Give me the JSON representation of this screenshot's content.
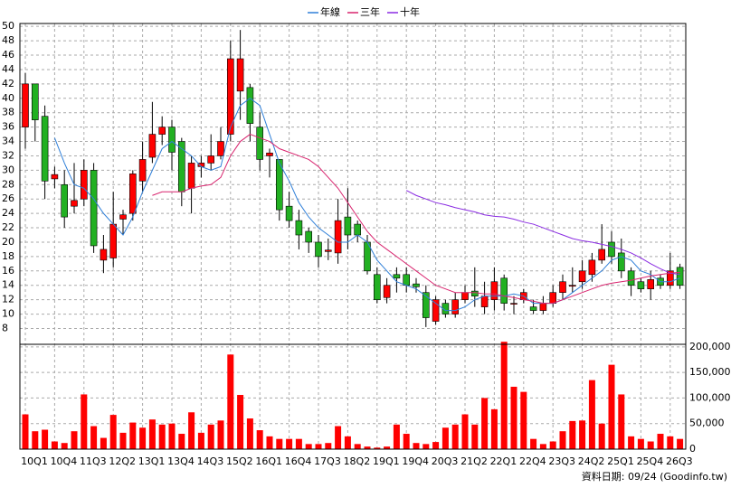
{
  "chart_data": {
    "type": "candlestick",
    "categories": [
      "10Q1",
      null,
      null,
      "10Q4",
      null,
      null,
      "11Q3",
      null,
      null,
      "12Q2",
      null,
      null,
      "13Q1",
      null,
      null,
      "13Q4",
      null,
      null,
      "14Q3",
      null,
      null,
      "15Q2",
      null,
      null,
      "16Q1",
      null,
      null,
      "16Q4",
      null,
      null,
      "17Q3",
      null,
      null,
      "18Q2",
      null,
      null,
      "19Q1",
      null,
      null,
      "19Q4",
      null,
      null,
      "20Q3",
      null,
      null,
      "21Q2",
      null,
      null,
      "22Q1",
      null,
      null,
      "22Q4",
      null,
      null,
      "23Q3",
      null,
      null,
      "24Q2",
      null,
      null,
      "25Q1",
      null,
      null,
      "25Q4",
      null,
      null,
      "26Q3",
      null
    ],
    "open": [
      36,
      42,
      37.5,
      28.8,
      28,
      25,
      26,
      30,
      17.5,
      17.8,
      23.2,
      24,
      28.5,
      31.8,
      35,
      36,
      34,
      27.5,
      30.5,
      31,
      32,
      35,
      41,
      41.5,
      36,
      32,
      31.5,
      25,
      23,
      21.5,
      20,
      18.7,
      18.5,
      23.5,
      22.5,
      20,
      15.5,
      12.3,
      15.5,
      15.5,
      14.2,
      13,
      9,
      11.5,
      10,
      12,
      13.2,
      11,
      12,
      15,
      11.4,
      12,
      11,
      10.5,
      11.5,
      13,
      13.9,
      14.5,
      15.5,
      17.5,
      20,
      18.5,
      16,
      14.5,
      13.5,
      15,
      14,
      16.5
    ],
    "high": [
      43.5,
      42,
      39,
      30.5,
      30,
      31,
      31.5,
      31,
      21,
      27,
      24.5,
      30,
      34,
      39.5,
      37.5,
      37,
      34.5,
      32,
      32,
      35,
      36,
      48,
      49.5,
      42,
      38,
      33,
      31.5,
      27,
      24.5,
      22,
      21,
      20.5,
      26,
      27.5,
      23,
      21,
      16.5,
      15,
      16.5,
      16.5,
      15,
      14,
      12.5,
      12,
      13,
      14,
      16.5,
      14.5,
      16.5,
      15.5,
      12.5,
      13.5,
      12,
      12.5,
      14,
      15.5,
      16.5,
      17.5,
      18.5,
      22.5,
      21.5,
      20.5,
      16.5,
      15,
      16,
      15.5,
      18.5,
      17
    ],
    "low": [
      33,
      34,
      26,
      27.5,
      22,
      24,
      25,
      18.5,
      15.7,
      16.5,
      21,
      23,
      27,
      31,
      33.5,
      30,
      25,
      24,
      29,
      30,
      31.5,
      34,
      37,
      34,
      30,
      29,
      23,
      22,
      19,
      18.5,
      16.5,
      17.5,
      17,
      19,
      20,
      15.5,
      11.5,
      11.5,
      13,
      13,
      13,
      8.2,
      8.5,
      9.5,
      9.5,
      11.5,
      11,
      10,
      10.5,
      10.5,
      10,
      11.5,
      10,
      10,
      11,
      12,
      13,
      13.5,
      14.5,
      17,
      17,
      15,
      12.5,
      13,
      12,
      13.5,
      13.5,
      13.5
    ],
    "close": [
      42,
      37,
      28.5,
      29.4,
      23.5,
      25.8,
      30,
      19.5,
      19,
      22.5,
      23.8,
      29.5,
      31.5,
      35,
      36,
      32.5,
      27,
      31,
      31,
      32,
      34,
      45.5,
      45.5,
      36.5,
      31.5,
      32.4,
      24.5,
      23,
      21,
      20,
      18,
      18.9,
      23,
      21,
      21,
      16,
      12,
      14,
      15,
      14,
      13.8,
      9.5,
      12,
      10,
      12,
      13,
      12.5,
      12.5,
      14.5,
      11.5,
      11.5,
      13,
      10.5,
      11.5,
      13,
      14.5,
      14,
      16,
      17.5,
      19,
      18,
      16,
      14,
      13.5,
      14.8,
      14,
      16,
      14
    ],
    "up_color": "#ff0000",
    "down_color": "#22b022",
    "flat_color": "#000000",
    "ylim": [
      5.8,
      50.4
    ],
    "yticks": [
      8,
      10,
      12,
      14,
      16,
      18,
      20,
      22,
      24,
      26,
      28,
      30,
      32,
      34,
      36,
      38,
      40,
      42,
      44,
      46,
      48,
      50
    ],
    "grid": true,
    "lines": [
      {
        "name": "年線",
        "color": "#2f7fd8",
        "values": [
          null,
          null,
          null,
          34.5,
          31,
          28,
          27.5,
          26,
          24,
          22.5,
          21,
          23.5,
          27,
          30,
          33,
          34,
          33,
          32,
          30.5,
          30,
          30.5,
          36,
          39,
          40,
          39,
          35,
          31,
          28.5,
          25.5,
          23.5,
          22,
          21,
          20,
          20,
          21,
          20,
          17.5,
          16,
          14.5,
          14,
          13.5,
          12.5,
          11.5,
          10.5,
          10.5,
          11,
          12,
          12.5,
          12.5,
          12.5,
          12.8,
          12.5,
          11.5,
          11.5,
          11.5,
          12,
          13,
          14,
          15,
          16,
          17.5,
          18,
          17.5,
          16,
          15.5,
          14.5,
          14.5,
          15
        ]
      },
      {
        "name": "三年",
        "color": "#d8246e",
        "values": [
          null,
          null,
          null,
          null,
          null,
          null,
          null,
          null,
          null,
          null,
          null,
          null,
          null,
          26.5,
          27,
          27,
          27,
          27.5,
          27.8,
          28,
          29,
          32,
          34,
          35,
          34.5,
          34,
          33,
          32.5,
          32,
          31.5,
          30.5,
          29,
          27.5,
          25.5,
          23.5,
          21.5,
          20,
          19,
          18,
          17,
          16,
          15,
          14,
          13.5,
          13,
          13,
          13,
          12.8,
          12.8,
          12.5,
          12.3,
          12,
          11.8,
          11.5,
          11.5,
          12,
          12.5,
          13,
          13.5,
          14,
          14.3,
          14.5,
          14.7,
          15,
          15.3,
          15.5,
          15.7,
          15.8
        ]
      },
      {
        "name": "十年",
        "color": "#8a2be2",
        "values": [
          null,
          null,
          null,
          null,
          null,
          null,
          null,
          null,
          null,
          null,
          null,
          null,
          null,
          null,
          null,
          null,
          null,
          null,
          null,
          null,
          null,
          null,
          null,
          null,
          null,
          null,
          null,
          null,
          null,
          null,
          null,
          null,
          null,
          null,
          null,
          null,
          null,
          null,
          null,
          27.2,
          26.5,
          26,
          25.5,
          25.2,
          24.8,
          24.5,
          24.2,
          23.8,
          23.6,
          23.5,
          23.2,
          22.8,
          22.5,
          22,
          21.5,
          21,
          20.5,
          20.2,
          20,
          19.7,
          19.4,
          19,
          18.5,
          17.8,
          17,
          16.3,
          15.7,
          15.5
        ]
      }
    ],
    "volume": {
      "color": "#ff0000",
      "values": [
        68000,
        35000,
        38000,
        15000,
        12000,
        35000,
        107000,
        45000,
        22000,
        67000,
        32000,
        52000,
        42000,
        58000,
        48000,
        50000,
        30000,
        72000,
        32000,
        48000,
        56000,
        185000,
        106000,
        60000,
        37000,
        25000,
        20000,
        20000,
        20000,
        10000,
        10000,
        12000,
        45000,
        25000,
        10000,
        5000,
        3000,
        5000,
        48000,
        30000,
        12000,
        10000,
        14000,
        42000,
        48000,
        68000,
        48000,
        100000,
        78000,
        210000,
        122000,
        112000,
        20000,
        10000,
        15000,
        35000,
        55000,
        56000,
        135000,
        50000,
        165000,
        107000,
        25000,
        20000,
        15000,
        30000,
        25000,
        20000
      ],
      "ylim": [
        0,
        205000
      ],
      "yticks": [
        {
          "value": 0,
          "label": "0"
        },
        {
          "value": 50000,
          "label": "50,000"
        },
        {
          "value": 100000,
          "label": "100,000"
        },
        {
          "value": 150000,
          "label": "150,000"
        },
        {
          "value": 200000,
          "label": "200,000"
        }
      ]
    },
    "source": "資料日期: 09/24 (Goodinfo.tw)"
  }
}
